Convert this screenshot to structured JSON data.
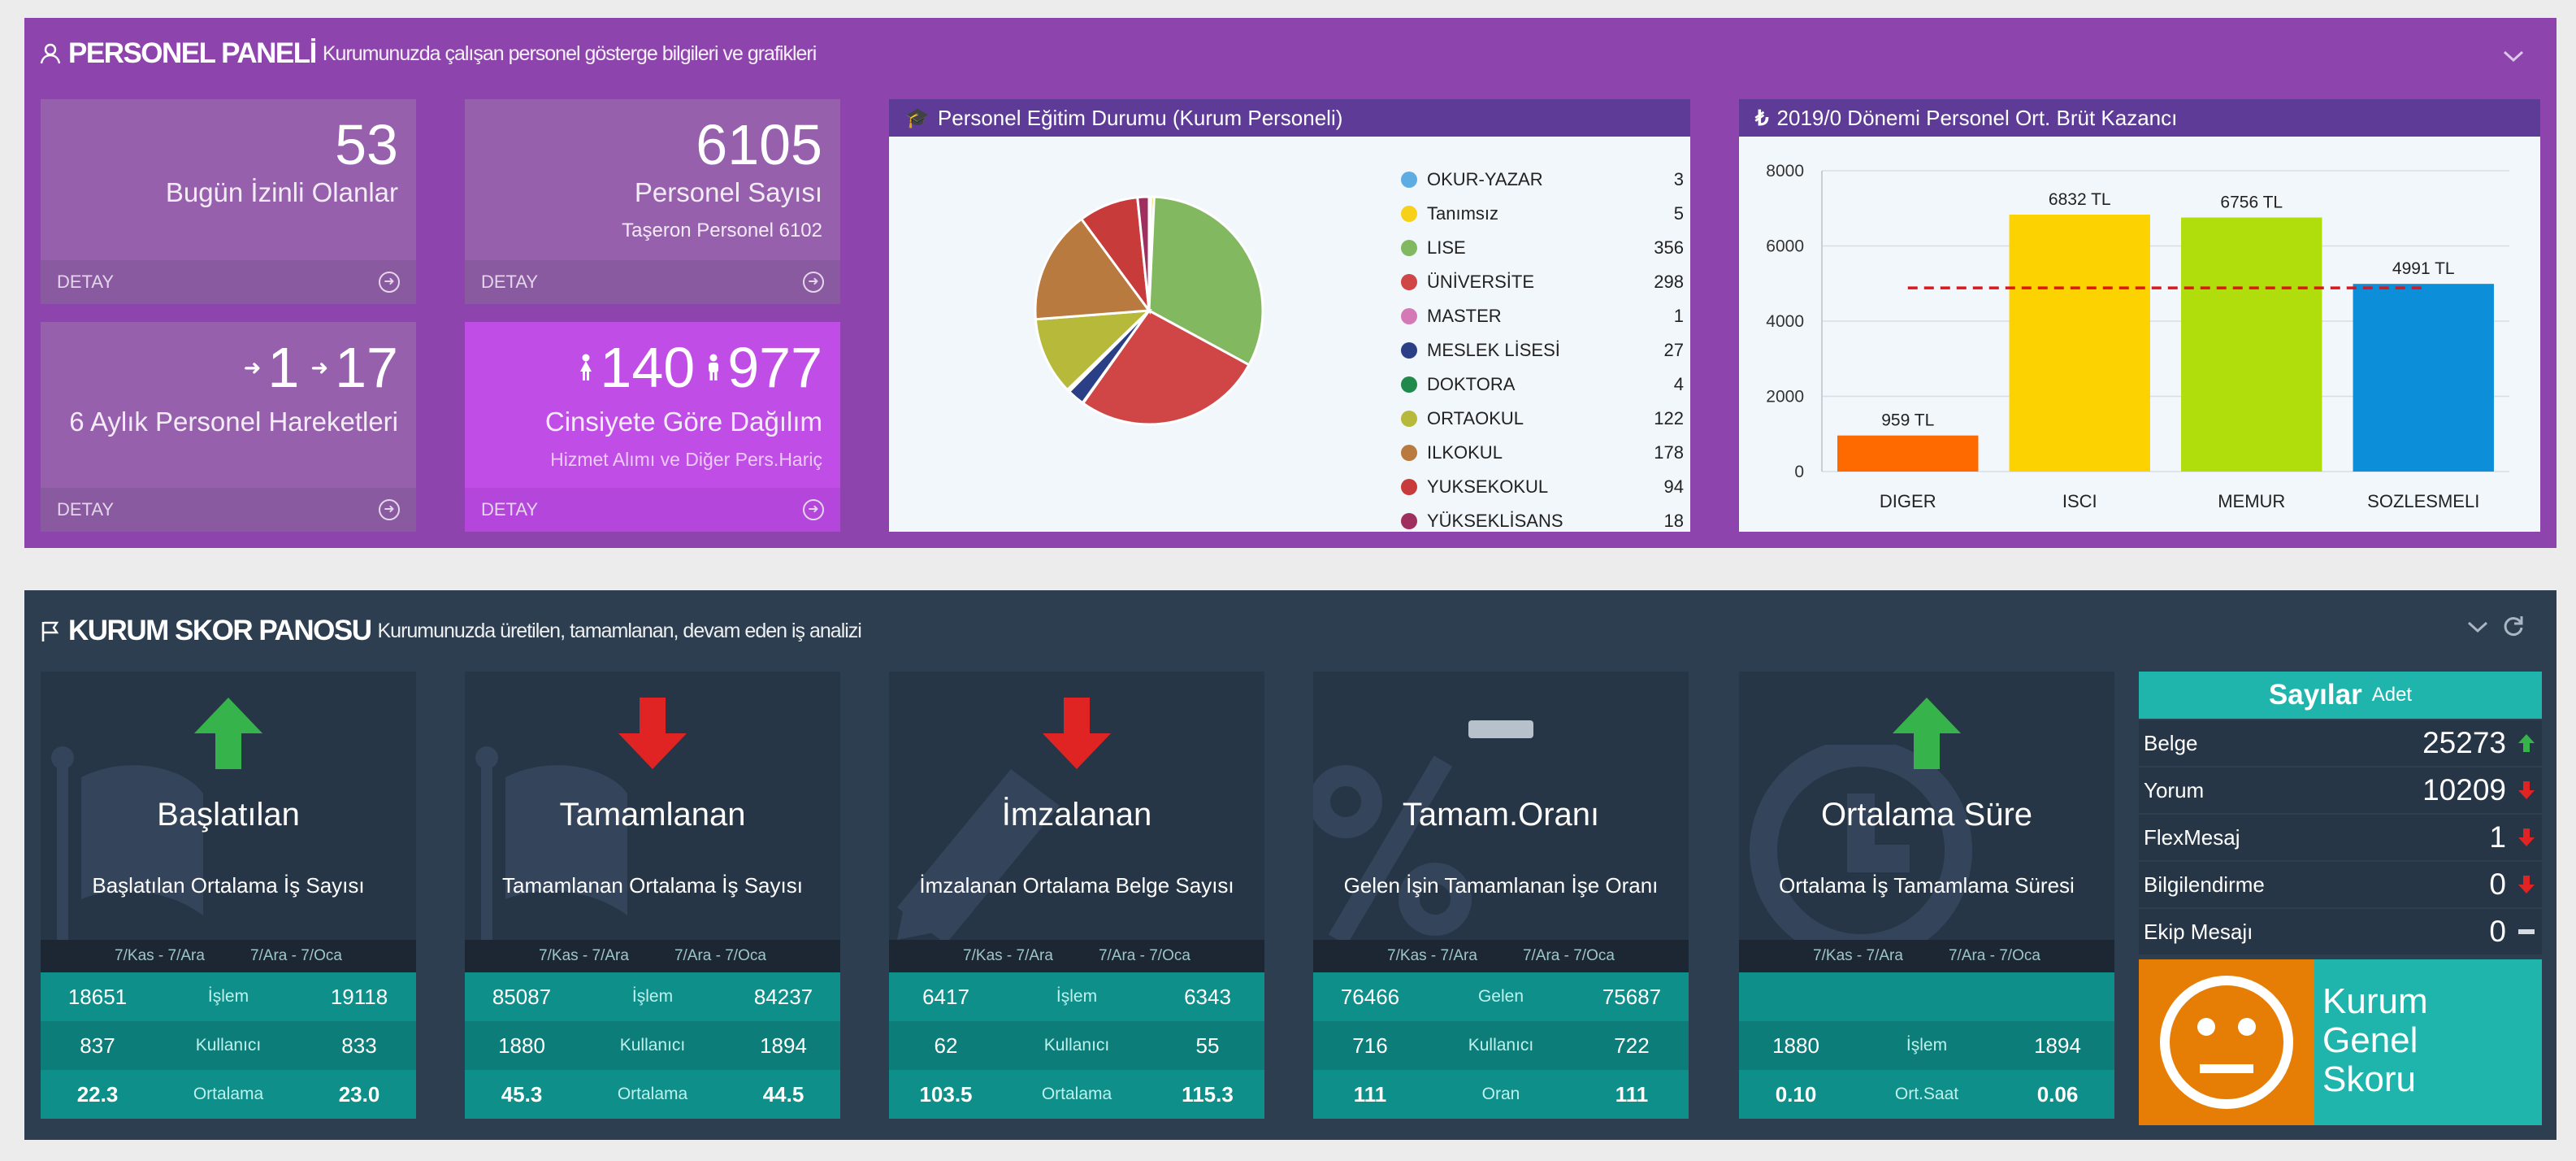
{
  "personel": {
    "title": "PERSONEL PANELİ",
    "subtitle": "Kurumunuzda çalışan personel gösterge bilgileri ve grafikleri",
    "tiles": {
      "izinli": {
        "value": "53",
        "label": "Bugün İzinli Olanlar",
        "detay": "DETAY"
      },
      "sayisi": {
        "value": "6105",
        "label": "Personel Sayısı",
        "taseron_label": "Taşeron Personel",
        "taseron_value": "6102",
        "detay": "DETAY"
      },
      "hareket": {
        "in": "1",
        "out": "17",
        "label": "6 Aylık Personel Hareketleri",
        "detay": "DETAY"
      },
      "cinsiyet": {
        "female": "140",
        "male": "977",
        "label": "Cinsiyete Göre Dağılım",
        "note": "Hizmet Alımı ve Diğer Pers.Hariç",
        "detay": "DETAY"
      }
    },
    "egitim": {
      "title": "Personel Eğitim Durumu (Kurum Personeli)",
      "legend": [
        {
          "name": "OKUR-YAZAR",
          "value": "3",
          "color": "#5dade2"
        },
        {
          "name": "Tanımsız",
          "value": "5",
          "color": "#f7d117"
        },
        {
          "name": "LISE",
          "value": "356",
          "color": "#82b860"
        },
        {
          "name": "ÜNİVERSİTE",
          "value": "298",
          "color": "#d04545"
        },
        {
          "name": "MASTER",
          "value": "1",
          "color": "#d479b6"
        },
        {
          "name": "MESLEK LİSESİ",
          "value": "27",
          "color": "#2b3f86"
        },
        {
          "name": "DOKTORA",
          "value": "4",
          "color": "#1f8a4c"
        },
        {
          "name": "ORTAOKUL",
          "value": "122",
          "color": "#b7b93b"
        },
        {
          "name": "ILKOKUL",
          "value": "178",
          "color": "#b87a3e"
        },
        {
          "name": "YUKSEKOKUL",
          "value": "94",
          "color": "#c73b3b"
        },
        {
          "name": "YÜKSEKLİSANS",
          "value": "18",
          "color": "#9e2f5e"
        }
      ]
    },
    "kazanc": {
      "title": "2019/0 Dönemi Personel Ort. Brüt Kazancı"
    }
  },
  "chart_data": [
    {
      "type": "pie",
      "title": "Personel Eğitim Durumu (Kurum Personeli)",
      "labels": [
        "OKUR-YAZAR",
        "Tanımsız",
        "LISE",
        "ÜNİVERSİTE",
        "MASTER",
        "MESLEK LİSESİ",
        "DOKTORA",
        "ORTAOKUL",
        "ILKOKUL",
        "YUKSEKOKUL",
        "YÜKSEKLİSANS"
      ],
      "values": [
        3,
        5,
        356,
        298,
        1,
        27,
        4,
        122,
        178,
        94,
        18
      ],
      "legend": "right"
    },
    {
      "type": "bar",
      "title": "2019/0 Dönemi Personel Ort. Brüt Kazancı",
      "categories": [
        "DIGER",
        "ISCI",
        "MEMUR",
        "SOZLESMELI"
      ],
      "values": [
        959,
        6832,
        6756,
        4991
      ],
      "value_labels": [
        "959 TL",
        "6832 TL",
        "6756 TL",
        "4991 TL"
      ],
      "colors": [
        "#ff6a00",
        "#fcd200",
        "#b0de0c",
        "#0d8ed8"
      ],
      "average_line": 4885,
      "ylim": [
        0,
        8000
      ],
      "yticks": [
        "0",
        "2000",
        "4000",
        "6000",
        "8000"
      ],
      "grid": true
    }
  ],
  "skor": {
    "title": "KURUM SKOR PANOSU",
    "subtitle": "Kurumunuzda üretilen, tamamlanan, devam eden iş analizi",
    "cards": [
      {
        "title": "Başlatılan",
        "desc": "Başlatılan Ortalama İş Sayısı",
        "trend": "up",
        "p1": "7/Kas - 7/Ara",
        "p2": "7/Ara - 7/Oca",
        "rows": [
          {
            "a": "18651",
            "m": "İşlem",
            "b": "19118"
          },
          {
            "a": "837",
            "m": "Kullanıcı",
            "b": "833"
          },
          {
            "a": "22.3",
            "m": "Ortalama",
            "b": "23.0"
          }
        ]
      },
      {
        "title": "Tamamlanan",
        "desc": "Tamamlanan Ortalama İş Sayısı",
        "trend": "down",
        "p1": "7/Kas - 7/Ara",
        "p2": "7/Ara - 7/Oca",
        "rows": [
          {
            "a": "85087",
            "m": "İşlem",
            "b": "84237"
          },
          {
            "a": "1880",
            "m": "Kullanıcı",
            "b": "1894"
          },
          {
            "a": "45.3",
            "m": "Ortalama",
            "b": "44.5"
          }
        ]
      },
      {
        "title": "İmzalanan",
        "desc": "İmzalanan Ortalama Belge Sayısı",
        "trend": "down",
        "p1": "7/Kas - 7/Ara",
        "p2": "7/Ara - 7/Oca",
        "rows": [
          {
            "a": "6417",
            "m": "İşlem",
            "b": "6343"
          },
          {
            "a": "62",
            "m": "Kullanıcı",
            "b": "55"
          },
          {
            "a": "103.5",
            "m": "Ortalama",
            "b": "115.3"
          }
        ]
      },
      {
        "title": "Tamam.Oranı",
        "desc": "Gelen İşin Tamamlanan İşe Oranı",
        "trend": "flat",
        "p1": "7/Kas - 7/Ara",
        "p2": "7/Ara - 7/Oca",
        "rows": [
          {
            "a": "76466",
            "m": "Gelen",
            "b": "75687"
          },
          {
            "a": "716",
            "m": "Kullanıcı",
            "b": "722"
          },
          {
            "a": "111",
            "m": "Oran",
            "b": "111"
          }
        ]
      },
      {
        "title": "Ortalama Süre",
        "desc": "Ortalama İş Tamamlama Süresi",
        "trend": "up",
        "p1": "7/Kas - 7/Ara",
        "p2": "7/Ara - 7/Oca",
        "rows": [
          {
            "a": "",
            "m": "",
            "b": ""
          },
          {
            "a": "1880",
            "m": "İşlem",
            "b": "1894"
          },
          {
            "a": "0.10",
            "m": "Ort.Saat",
            "b": "0.06"
          }
        ]
      }
    ],
    "sayilar": {
      "title": "Sayılar",
      "unit": "Adet",
      "rows": [
        {
          "label": "Belge",
          "value": "25273",
          "trend": "up"
        },
        {
          "label": "Yorum",
          "value": "10209",
          "trend": "down"
        },
        {
          "label": "FlexMesaj",
          "value": "1",
          "trend": "down"
        },
        {
          "label": "Bilgilendirme",
          "value": "0",
          "trend": "down"
        },
        {
          "label": "Ekip Mesajı",
          "value": "0",
          "trend": "flat"
        }
      ],
      "score_line1": "Kurum",
      "score_line2": "Genel",
      "score_line3": "Skoru"
    }
  }
}
